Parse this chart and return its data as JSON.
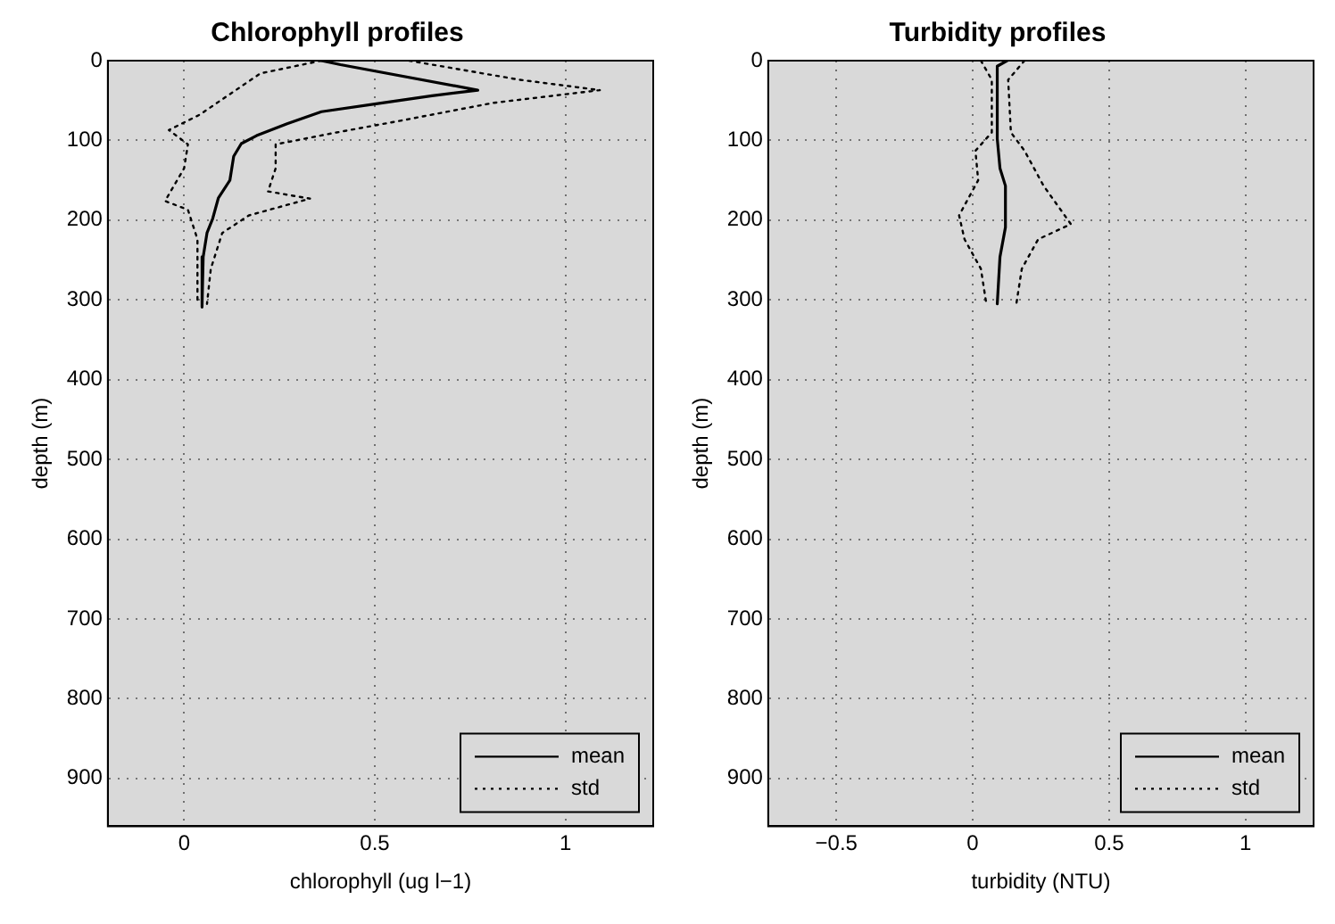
{
  "chart_data": [
    {
      "type": "line",
      "title": "Chlorophyll profiles",
      "xlabel": "chlorophyll (ug l−1)",
      "ylabel": "depth (m)",
      "xlim": [
        -0.2,
        1.23
      ],
      "xticks": [
        0,
        0.5,
        1
      ],
      "ylim": [
        960,
        0
      ],
      "yticks": [
        0,
        100,
        200,
        300,
        400,
        500,
        600,
        700,
        800,
        900
      ],
      "grid": true,
      "legend": "bottom right",
      "marker": "none",
      "series": [
        {
          "name": "mean",
          "color": "#000000",
          "line_style": "solid",
          "x": [
            0.36,
            0.41,
            0.77,
            0.65,
            0.52,
            0.36,
            0.27,
            0.19,
            0.15,
            0.13,
            0.12,
            0.09,
            0.075,
            0.06,
            0.05,
            0.047
          ],
          "values": [
            0,
            5,
            37,
            44,
            53,
            64,
            79,
            94,
            104,
            120,
            150,
            172,
            198,
            216,
            246,
            309
          ]
        },
        {
          "name": "std",
          "color": "#000000",
          "line_style": "dotted",
          "x": [
            0.36,
            0.2,
            0.04,
            -0.04,
            0.01,
            0,
            -0.05,
            0.01,
            0.035,
            0.035
          ],
          "values": [
            0,
            16,
            68,
            87,
            105,
            135,
            176,
            187,
            224,
            305
          ]
        },
        {
          "color": "#000000",
          "line_style": "dotted",
          "x": [
            0.59,
            0.88,
            1.09,
            0.81,
            0.56,
            0.4,
            0.24,
            0.24,
            0.22,
            0.33,
            0.17,
            0.1,
            0.07,
            0.06
          ],
          "values": [
            0,
            24,
            37,
            53,
            76,
            90,
            105,
            135,
            164,
            173,
            194,
            216,
            261,
            305
          ]
        }
      ]
    },
    {
      "type": "line",
      "title": "Turbidity profiles",
      "xlabel": "turbidity (NTU)",
      "ylabel": "depth (m)",
      "xlim": [
        -0.75,
        1.25
      ],
      "xticks": [
        {
          "value": -0.5,
          "label": "−0.5"
        },
        0,
        0.5,
        1
      ],
      "ylim": [
        960,
        0
      ],
      "yticks": [
        0,
        100,
        200,
        300,
        400,
        500,
        600,
        700,
        800,
        900
      ],
      "grid": true,
      "legend": "bottom right",
      "marker": "none",
      "series": [
        {
          "name": "mean",
          "color": "#000000",
          "line_style": "solid",
          "x": [
            0.126,
            0.09,
            0.09,
            0.1,
            0.12,
            0.12,
            0.1,
            0.09
          ],
          "values": [
            0,
            7,
            98,
            135,
            157,
            209,
            246,
            305
          ]
        },
        {
          "name": "std",
          "color": "#000000",
          "line_style": "dotted",
          "x": [
            0.03,
            0.07,
            0.07,
            0.01,
            0.02,
            -0.05,
            -0.03,
            0.03,
            0.05
          ],
          "values": [
            0,
            24,
            90,
            113,
            150,
            194,
            224,
            261,
            305
          ]
        },
        {
          "color": "#000000",
          "line_style": "dotted",
          "x": [
            0.19,
            0.13,
            0.14,
            0.19,
            0.26,
            0.36,
            0.24,
            0.18,
            0.16
          ],
          "values": [
            0,
            24,
            90,
            113,
            157,
            205,
            224,
            261,
            305
          ]
        }
      ]
    }
  ]
}
